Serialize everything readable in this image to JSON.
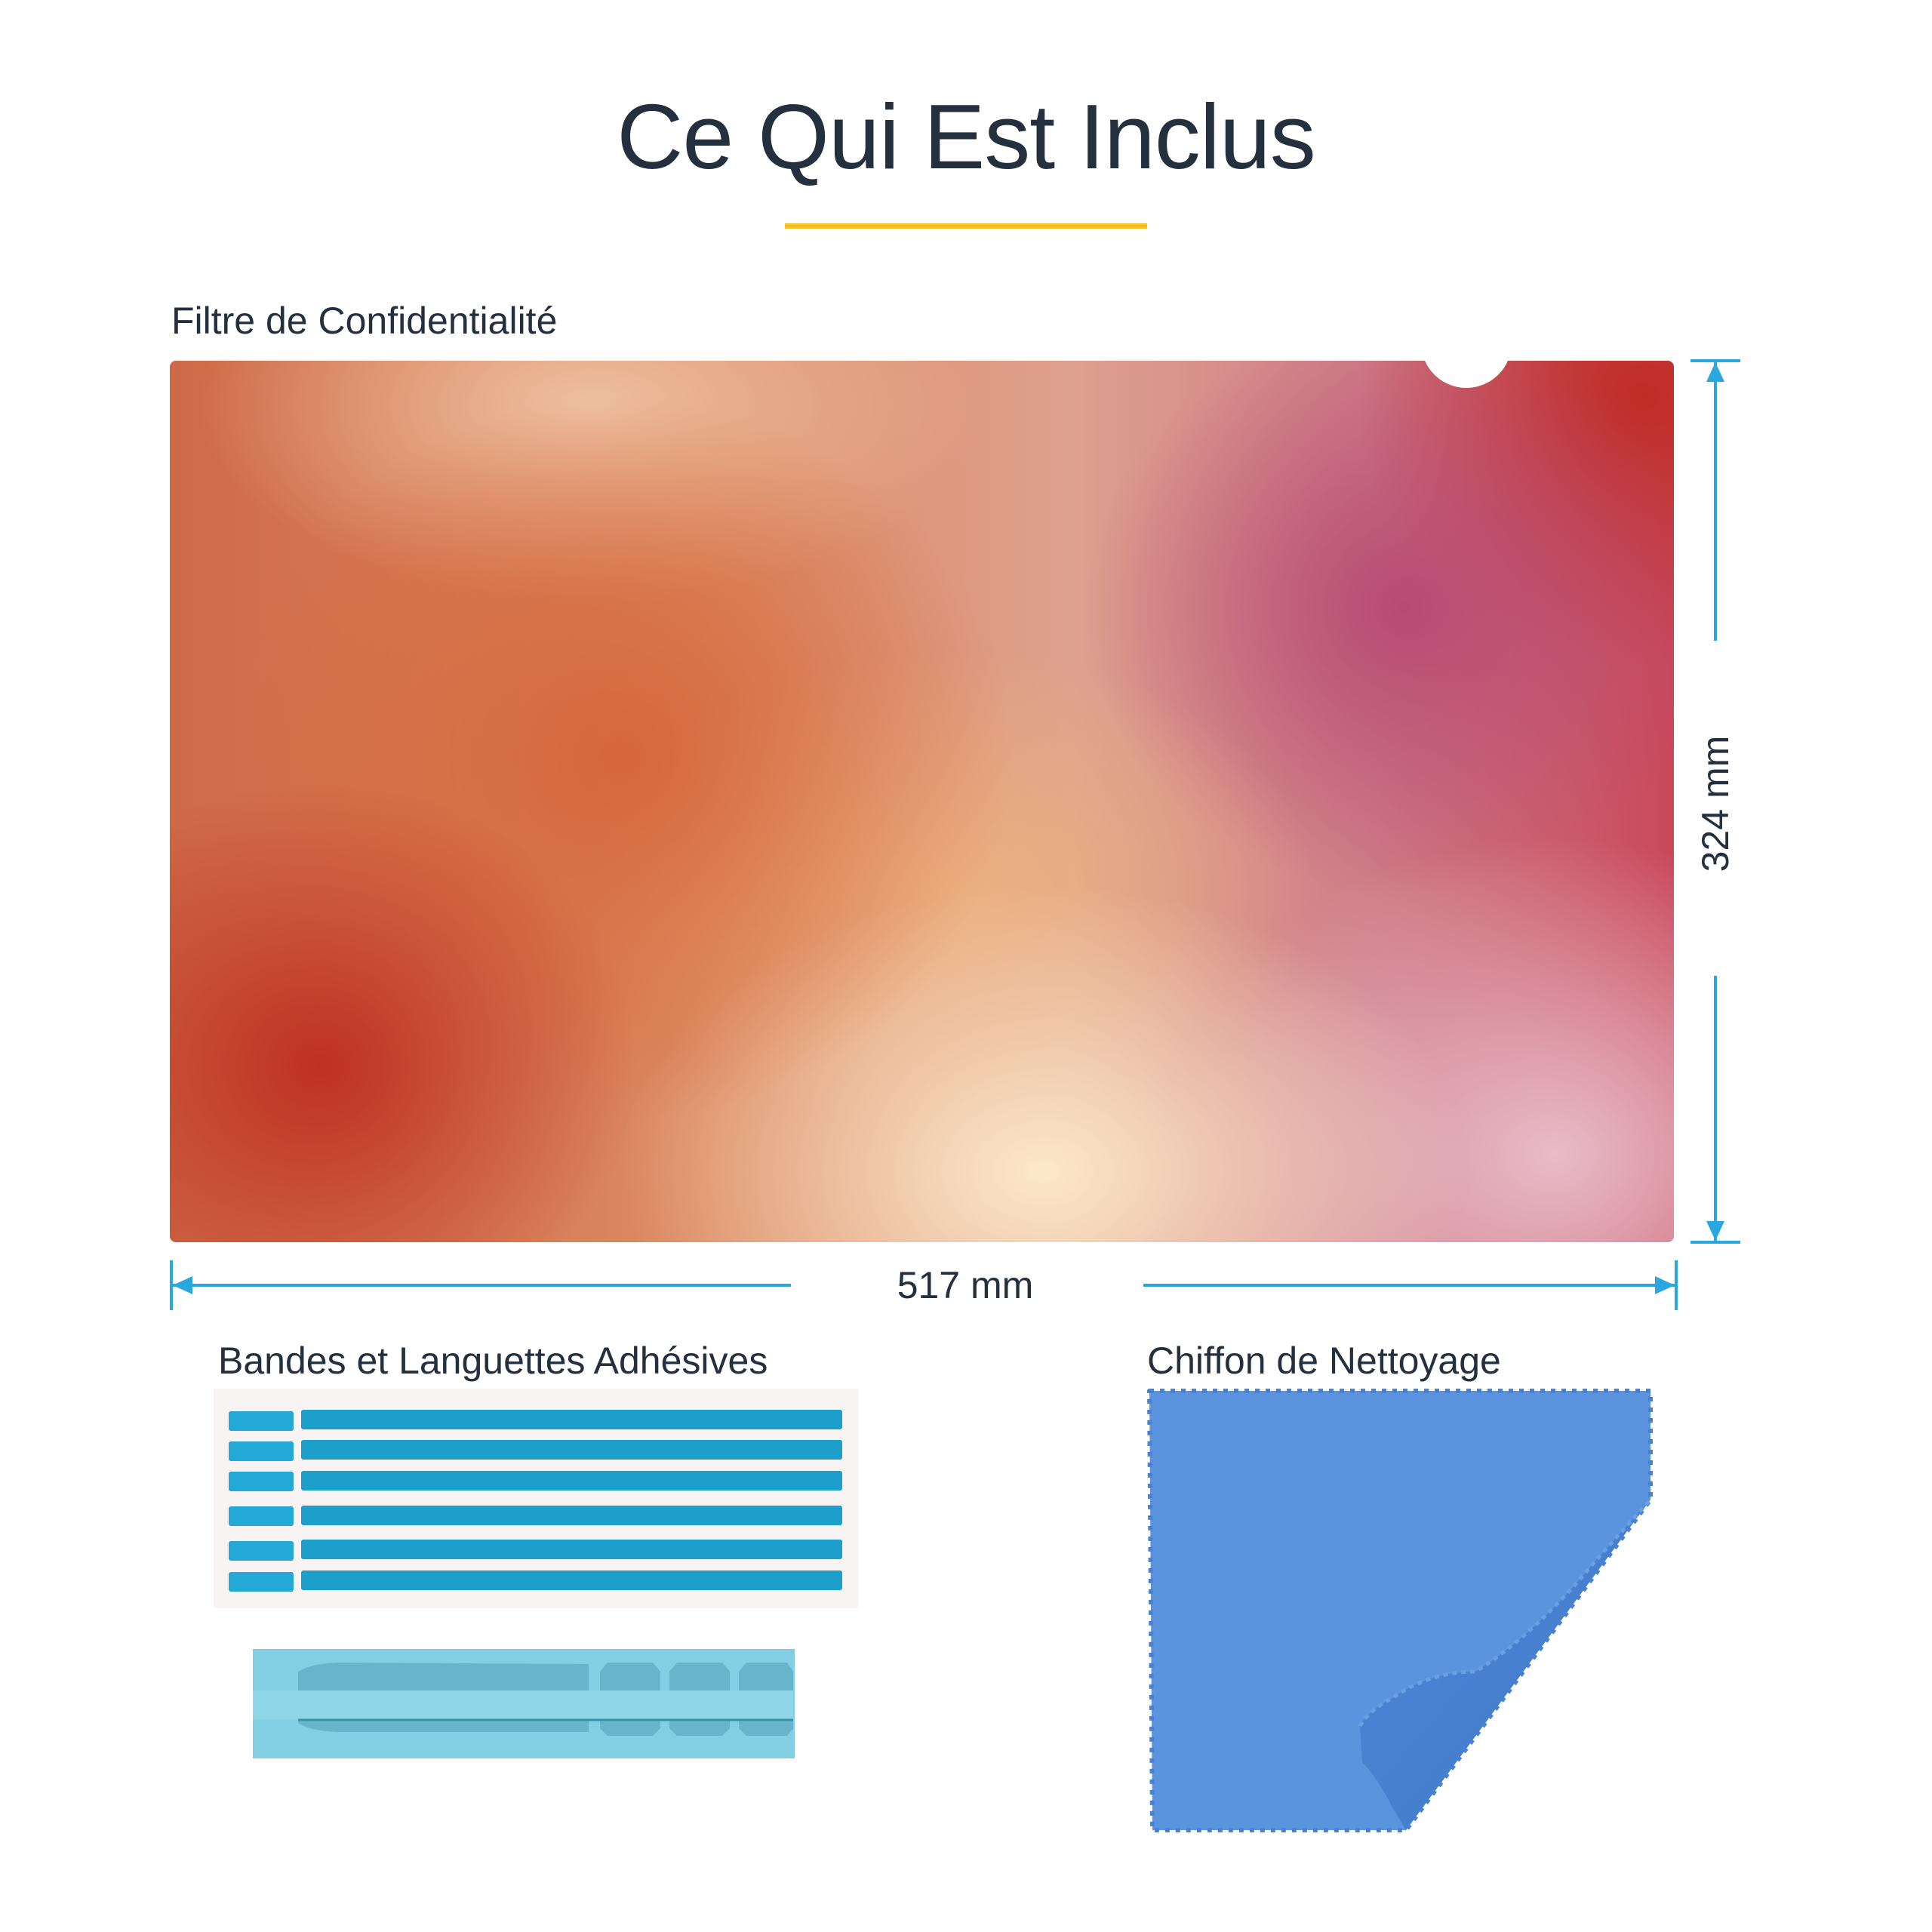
{
  "header": {
    "title": "Ce Qui Est Inclus",
    "accent_color": "#f5c01e"
  },
  "filter": {
    "label": "Filtre de Confidentialité",
    "width_label": "517 mm",
    "height_label": "324 mm",
    "dimension_color": "#29a8df"
  },
  "adhesives": {
    "label": "Bandes et Languettes Adhésives",
    "strip_count": 6,
    "strip_color": "#1ca0cb"
  },
  "cloth": {
    "label": "Chiffon de Nettoyage",
    "color": "#5b94de"
  }
}
